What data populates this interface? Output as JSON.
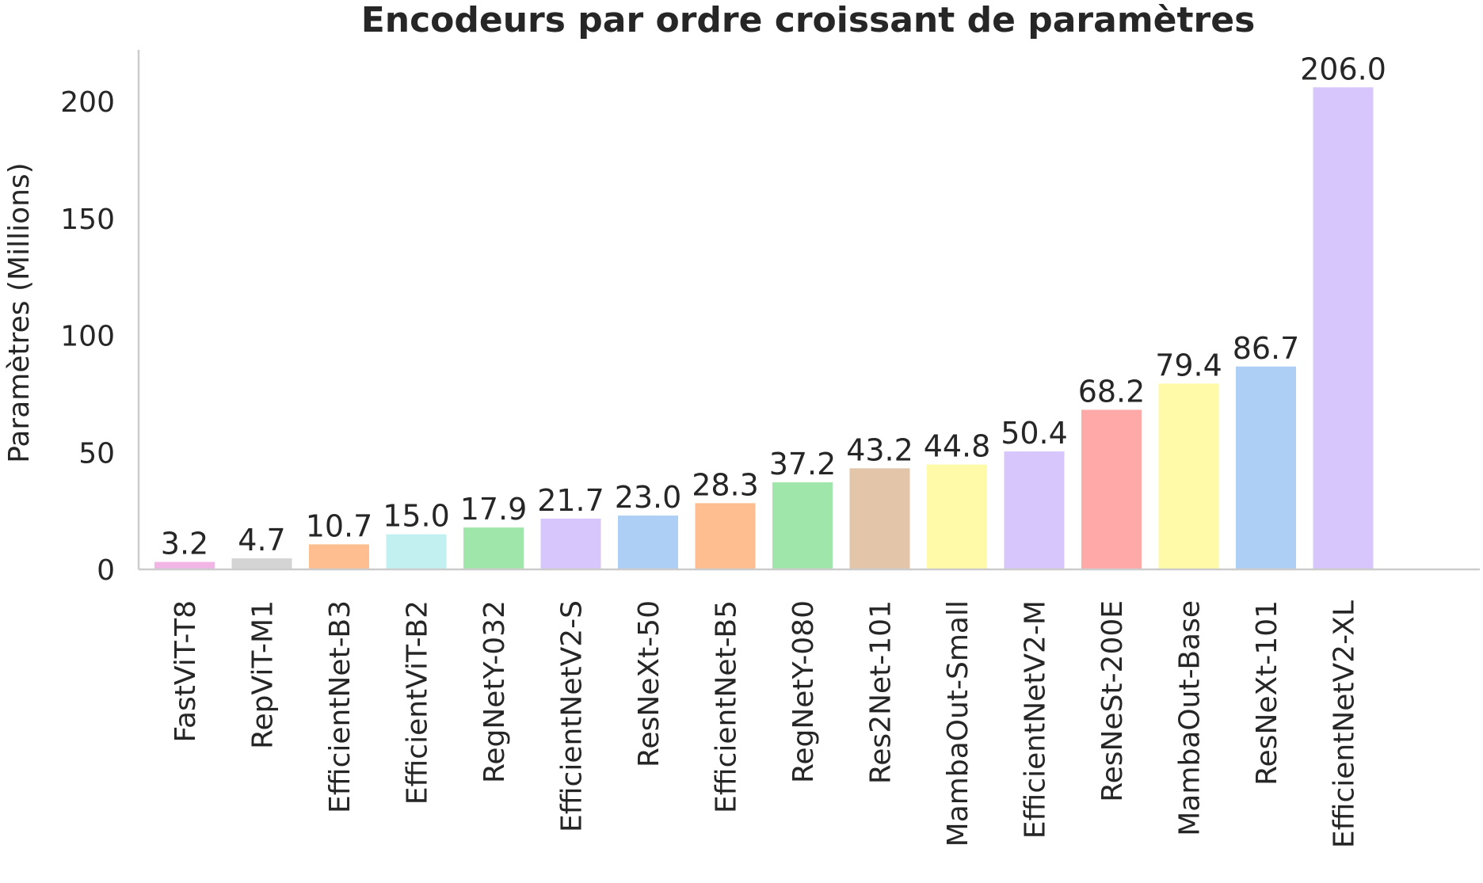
{
  "chart_data": {
    "type": "bar",
    "title": "Encodeurs par ordre croissant de paramètres",
    "ylabel": "Paramètres (Millions)",
    "xlabel": "",
    "ylim": [
      0,
      220
    ],
    "yticks": [
      0,
      50,
      100,
      150,
      200
    ],
    "grid": false,
    "categories": [
      "FastViT-T8",
      "RepViT-M1",
      "EfficientNet-B3",
      "EfficientViT-B2",
      "RegNetY-032",
      "EfficientNetV2-S",
      "ResNeXt-50",
      "EfficientNet-B5",
      "RegNetY-080",
      "Res2Net-101",
      "MambaOut-Small",
      "EfficientNetV2-M",
      "ResNeSt-200E",
      "MambaOut-Base",
      "ResNeXt-101",
      "EfficientNetV2-XL"
    ],
    "values": [
      3.2,
      4.7,
      10.7,
      15.0,
      17.9,
      21.7,
      23.0,
      28.3,
      37.2,
      43.2,
      44.8,
      50.4,
      68.2,
      79.4,
      86.7,
      206.0
    ],
    "data_labels": [
      "3.2",
      "4.7",
      "10.7",
      "15.0",
      "17.9",
      "21.7",
      "23.0",
      "28.3",
      "37.2",
      "43.2",
      "44.8",
      "50.4",
      "68.2",
      "79.4",
      "86.7",
      "206.0"
    ],
    "colors": [
      "#f2b6e6",
      "#d4d4d4",
      "#ffbe8f",
      "#c2f0f0",
      "#9fe6aa",
      "#d7c6fb",
      "#aecff5",
      "#ffbe8f",
      "#9fe6aa",
      "#e3c5aa",
      "#fffaa8",
      "#d7c6fb",
      "#ffaaa8",
      "#fffaa8",
      "#aecff5",
      "#d7c6fb"
    ]
  }
}
